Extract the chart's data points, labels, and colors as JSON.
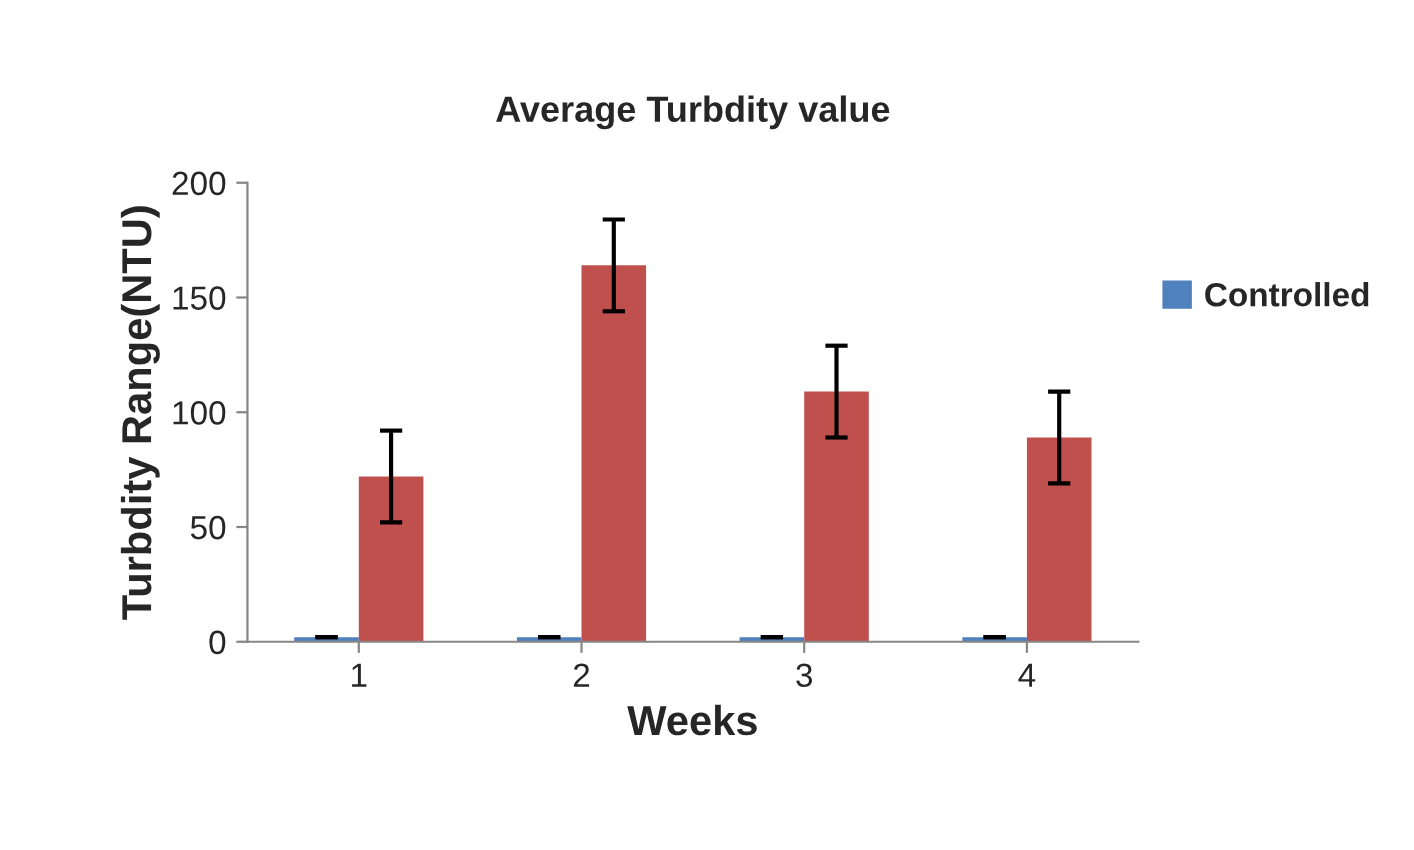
{
  "chart_data": {
    "type": "bar",
    "title": "Average Turbdity value",
    "xlabel": "Weeks",
    "ylabel": "Turbdity Range(NTU)",
    "categories": [
      "1",
      "2",
      "3",
      "4"
    ],
    "series": [
      {
        "name": "Controlled",
        "color": "#4f81bd",
        "values": [
          2,
          2,
          2,
          2
        ],
        "errors": [
          0,
          0,
          0,
          0
        ]
      },
      {
        "color": "#c0504d",
        "values": [
          72,
          164,
          109,
          89
        ],
        "errors": [
          20,
          20,
          20,
          20
        ]
      }
    ],
    "ylim": [
      0,
      200
    ],
    "yticks": [
      0,
      50,
      100,
      150,
      200
    ],
    "grid": false,
    "legend": "right"
  }
}
